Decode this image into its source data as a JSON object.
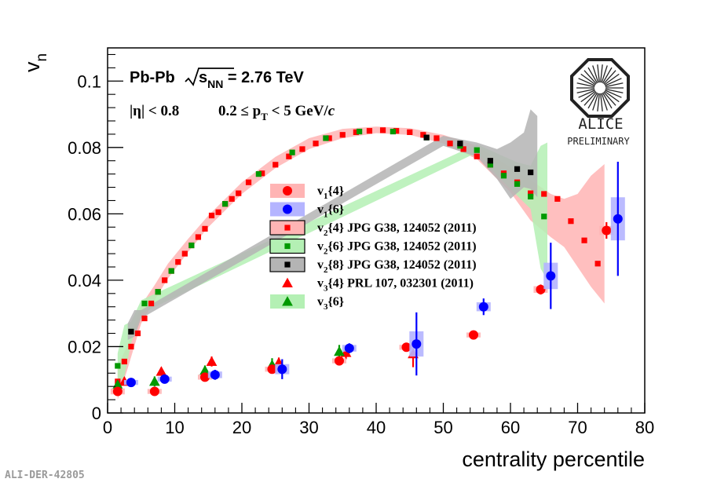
{
  "chart_data": {
    "type": "scatter",
    "xlabel": "centrality percentile",
    "ylabel_main": "v",
    "ylabel_sub": "n",
    "xlim": [
      0,
      80
    ],
    "ylim": [
      0,
      0.11
    ],
    "x_ticks": [
      0,
      10,
      20,
      30,
      40,
      50,
      60,
      70,
      80
    ],
    "x_tick_labels": [
      "0",
      "10",
      "20",
      "30",
      "40",
      "50",
      "60",
      "70",
      "80"
    ],
    "y_ticks": [
      0,
      0.02,
      0.04,
      0.06,
      0.08,
      0.1
    ],
    "y_tick_labels": [
      "0",
      "0.02",
      "0.04",
      "0.06",
      "0.08",
      "0.1"
    ],
    "annotations": {
      "system": "Pb-Pb",
      "energy_label": "s",
      "energy_sub": "NN",
      "energy_value": " = 2.76 TeV",
      "eta_cut": "|η| < 0.8",
      "pt_pre": "0.2 ≤ p",
      "pt_sub": "T",
      "pt_post": " < 5 GeV/",
      "pt_unit_italic": "c"
    },
    "logo": {
      "name": "ALICE",
      "tag": "PRELIMINARY"
    },
    "figure_id": "ALI-DER-42805",
    "legend_placement": "center",
    "legend": [
      {
        "main": "v",
        "sub": "1",
        "rest": "{4}",
        "marker": "circle",
        "color": "#ff0000",
        "band": "#ffb4b4"
      },
      {
        "main": "v",
        "sub": "1",
        "rest": "{6}",
        "marker": "circle",
        "color": "#0000ff",
        "band": "#b4b4ff"
      },
      {
        "main": "v",
        "sub": "2",
        "rest": "{4} JPG G38, 124052 (2011)",
        "marker": "square",
        "color": "#ff0000",
        "band": "#ffb4b4"
      },
      {
        "main": "v",
        "sub": "2",
        "rest": "{6} JPG G38, 124052 (2011)",
        "marker": "square",
        "color": "#009900",
        "band": "#b4f0b4"
      },
      {
        "main": "v",
        "sub": "2",
        "rest": "{8} JPG G38, 124052 (2011)",
        "marker": "square",
        "color": "#000000",
        "band": "#b4b4b4"
      },
      {
        "main": "v",
        "sub": "3",
        "rest": "{4} PRL 107, 032301 (2011)",
        "marker": "triangle",
        "color": "#ff0000",
        "band": null
      },
      {
        "main": "v",
        "sub": "3",
        "rest": "{6}",
        "marker": "triangle",
        "color": "#009900",
        "band": "#b4f0b4"
      }
    ],
    "series": [
      {
        "name": "v1{4}",
        "marker": "circle",
        "color": "#ff0000",
        "x": [
          1.5,
          7,
          14.5,
          24.5,
          34.5,
          44.5,
          54.5,
          64.5,
          74.3
        ],
        "y": [
          0.0065,
          0.0065,
          0.0108,
          0.0132,
          0.0157,
          0.0198,
          0.0235,
          0.0372,
          0.055
        ],
        "err": [
          0.0012,
          0.0008,
          0.0008,
          0.0008,
          0.0008,
          0.0008,
          0.0008,
          0.0015,
          0.0025
        ]
      },
      {
        "name": "v1{6}",
        "marker": "circle",
        "color": "#0000ff",
        "x": [
          3.5,
          8.5,
          16,
          26,
          36,
          46,
          56,
          66,
          76
        ],
        "y": [
          0.0092,
          0.0102,
          0.0115,
          0.0132,
          0.0195,
          0.0208,
          0.032,
          0.0413,
          0.0585
        ],
        "err": [
          0.0008,
          0.0008,
          0.0015,
          0.003,
          0.0015,
          0.0095,
          0.0025,
          0.01,
          0.0172
        ]
      },
      {
        "name": "v2{4}",
        "marker": "square",
        "color": "#ff0000",
        "x": [
          1.5,
          2.5,
          3.5,
          4.5,
          5.5,
          6.5,
          7.5,
          8.5,
          9.5,
          10.5,
          11.5,
          12.5,
          13.5,
          14.5,
          15.5,
          16.5,
          17.5,
          18.5,
          19.5,
          21,
          23,
          25,
          27,
          29,
          31,
          33,
          35,
          37,
          39,
          41,
          43,
          45,
          47,
          49,
          51,
          53,
          55,
          57,
          59,
          61,
          63,
          65,
          67,
          69,
          71,
          73
        ],
        "y": [
          0.0095,
          0.0155,
          0.02,
          0.024,
          0.0285,
          0.033,
          0.0365,
          0.04,
          0.0428,
          0.0455,
          0.048,
          0.0505,
          0.053,
          0.0555,
          0.0595,
          0.0605,
          0.063,
          0.0645,
          0.0662,
          0.0695,
          0.0722,
          0.0748,
          0.0773,
          0.0795,
          0.0812,
          0.0828,
          0.0838,
          0.0846,
          0.085,
          0.0852,
          0.085,
          0.0846,
          0.0838,
          0.0828,
          0.0812,
          0.0795,
          0.0773,
          0.0748,
          0.0722,
          0.0695,
          0.0662,
          0.066,
          0.0645,
          0.0578,
          0.052,
          0.045
        ]
      },
      {
        "name": "v2{6}",
        "marker": "square",
        "color": "#009900",
        "x": [
          1.5,
          3.5,
          5.5,
          7.5,
          9.5,
          12.5,
          17.5,
          22.5,
          27.5,
          32.5,
          37.5,
          42.5,
          47.5,
          52.5,
          55,
          57,
          59,
          61,
          63,
          65
        ],
        "y": [
          0.0142,
          0.0245,
          0.033,
          0.0365,
          0.0428,
          0.0505,
          0.063,
          0.072,
          0.0785,
          0.0828,
          0.0848,
          0.0848,
          0.083,
          0.0805,
          0.0792,
          0.0748,
          0.0715,
          0.069,
          0.0652,
          0.0592
        ]
      },
      {
        "name": "v2{8}",
        "marker": "square",
        "color": "#000000",
        "x": [
          3.5,
          47.5,
          52.5,
          57,
          61,
          63
        ],
        "y": [
          0.0245,
          0.083,
          0.0812,
          0.076,
          0.0735,
          0.0725
        ]
      },
      {
        "name": "v3{4}",
        "marker": "triangle",
        "color": "#ff0000",
        "x": [
          2.5,
          8,
          15.5,
          25.5,
          35.5,
          45.5
        ],
        "y": [
          0.0095,
          0.0125,
          0.0155,
          0.0152,
          0.0182,
          0.0178
        ],
        "err": [
          0.0012,
          0.0012,
          0.0015,
          0.0015,
          0.002,
          0.004
        ]
      },
      {
        "name": "v3{6}",
        "marker": "triangle",
        "color": "#009900",
        "x": [
          1.5,
          7,
          14.5,
          24.5,
          34.5
        ],
        "y": [
          0.0085,
          0.0095,
          0.0128,
          0.0145,
          0.0185
        ],
        "err": [
          0.0012,
          0.0015,
          0.0015,
          0.002,
          0.002
        ]
      }
    ],
    "bands": [
      {
        "name": "v2{4} band",
        "color": "#ffb4b4",
        "x": [
          1.5,
          3,
          5,
          7,
          9,
          12,
          15,
          20,
          25,
          30,
          35,
          40,
          45,
          50,
          55,
          60,
          63,
          66,
          68,
          70,
          72,
          74
        ],
        "lo": [
          0.004,
          0.0135,
          0.027,
          0.034,
          0.0405,
          0.0485,
          0.056,
          0.066,
          0.0738,
          0.0795,
          0.0828,
          0.0843,
          0.0838,
          0.0812,
          0.0765,
          0.0665,
          0.058,
          0.053,
          0.05,
          0.044,
          0.038,
          0.033
        ],
        "hi": [
          0.014,
          0.0205,
          0.0325,
          0.0385,
          0.045,
          0.0525,
          0.0595,
          0.0695,
          0.0772,
          0.0828,
          0.0856,
          0.0863,
          0.0858,
          0.0838,
          0.0805,
          0.074,
          0.0702,
          0.066,
          0.0645,
          0.066,
          0.0715,
          0.075
        ]
      },
      {
        "name": "v2{6} band",
        "color": "#b4f0b4",
        "x": [
          1.5,
          2.5,
          3.5,
          5,
          55,
          58,
          61,
          63,
          64.5,
          65.5
        ],
        "lo": [
          0.009,
          0.011,
          0.021,
          0.03,
          0.0785,
          0.0715,
          0.0655,
          0.0615,
          0.0435,
          0.04
        ],
        "hi": [
          0.018,
          0.0265,
          0.0275,
          0.034,
          0.081,
          0.0782,
          0.0755,
          0.0745,
          0.0805,
          0.0815
        ]
      },
      {
        "name": "v2{8} band",
        "color": "#b4b4b4",
        "x": [
          3,
          4,
          5,
          50,
          55,
          58,
          60,
          62,
          63,
          64
        ],
        "lo": [
          0.022,
          0.023,
          0.0285,
          0.0805,
          0.0772,
          0.0705,
          0.0645,
          0.068,
          0.0675,
          0.065
        ],
        "hi": [
          0.027,
          0.031,
          0.031,
          0.0835,
          0.0815,
          0.0795,
          0.0815,
          0.0845,
          0.0915,
          0.0895
        ]
      }
    ]
  }
}
